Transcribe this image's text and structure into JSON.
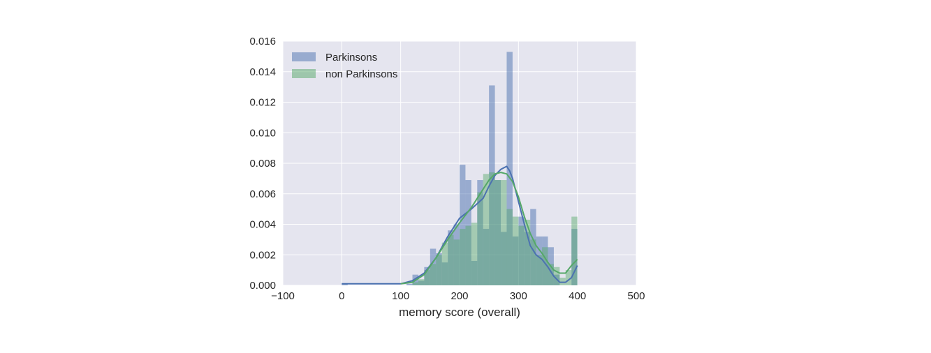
{
  "chart_data": {
    "type": "histogram",
    "title": "",
    "xlabel": "memory score (overall)",
    "ylabel": "",
    "xlim": [
      -100,
      500
    ],
    "ylim": [
      0,
      0.016
    ],
    "xticks": [
      "−100",
      "0",
      "100",
      "200",
      "300",
      "400",
      "500"
    ],
    "yticks": [
      "0.000",
      "0.002",
      "0.004",
      "0.006",
      "0.008",
      "0.010",
      "0.012",
      "0.014",
      "0.016"
    ],
    "grid": true,
    "legend_position": "top-left",
    "colors": {
      "Parkinsons": "#4c72b0",
      "non Parkinsons": "#55a868",
      "background": "#e5e5ef"
    },
    "series": [
      {
        "name": "Parkinsons",
        "kind": "histogram",
        "bin_left": [
          0,
          10,
          20,
          30,
          40,
          50,
          60,
          70,
          80,
          90,
          100,
          110,
          120,
          130,
          140,
          150,
          160,
          170,
          180,
          190,
          200,
          210,
          220,
          230,
          240,
          250,
          260,
          270,
          280,
          290,
          300,
          310,
          320,
          330,
          340,
          350,
          360,
          370,
          380,
          390
        ],
        "bin_width": 10,
        "values": [
          0.0001,
          0,
          0,
          0,
          0,
          0,
          0,
          0,
          0,
          0,
          0,
          0.0001,
          0.0007,
          0.0003,
          0.0012,
          0.0024,
          0.0021,
          0.0015,
          0.0036,
          0.004,
          0.0079,
          0.0069,
          0.0016,
          0.0069,
          0.0037,
          0.0131,
          0.0069,
          0.0035,
          0.0153,
          0.0032,
          0.0045,
          0.0035,
          0.005,
          0.0032,
          0.0032,
          0.0025,
          0.0007,
          0,
          0,
          0.0037
        ],
        "kde": {
          "x": [
            0,
            50,
            100,
            120,
            140,
            160,
            180,
            200,
            220,
            240,
            250,
            260,
            270,
            280,
            285,
            290,
            300,
            310,
            320,
            330,
            340,
            350,
            360,
            370,
            380,
            390,
            400
          ],
          "y": [
            0.0001,
            0.0001,
            0.0001,
            0.0003,
            0.0008,
            0.0018,
            0.0032,
            0.0044,
            0.005,
            0.0057,
            0.0065,
            0.0072,
            0.0076,
            0.0078,
            0.0075,
            0.007,
            0.0055,
            0.004,
            0.0026,
            0.002,
            0.0017,
            0.0012,
            0.0006,
            0.0002,
            0.0002,
            0.0005,
            0.0013
          ]
        }
      },
      {
        "name": "non Parkinsons",
        "kind": "histogram",
        "bin_left": [
          120,
          130,
          140,
          150,
          160,
          170,
          180,
          190,
          200,
          210,
          220,
          230,
          240,
          250,
          260,
          270,
          280,
          290,
          300,
          310,
          320,
          330,
          340,
          350,
          360,
          370,
          380,
          390
        ],
        "bin_width": 10,
        "values": [
          0.0002,
          0.0004,
          0.001,
          0.0014,
          0.002,
          0.0028,
          0.0033,
          0.003,
          0.0037,
          0.0039,
          0.0041,
          0.0061,
          0.0073,
          0.0074,
          0.0069,
          0.0069,
          0.005,
          0.0045,
          0.0039,
          0.0043,
          0.003,
          0.002,
          0.0025,
          0.0014,
          0.0012,
          0.0005,
          0.001,
          0.0045
        ],
        "kde": {
          "x": [
            100,
            120,
            140,
            160,
            180,
            200,
            220,
            240,
            250,
            260,
            270,
            280,
            290,
            300,
            310,
            320,
            330,
            340,
            350,
            360,
            370,
            380,
            390,
            400
          ],
          "y": [
            0.0001,
            0.0002,
            0.0007,
            0.0018,
            0.003,
            0.0041,
            0.0051,
            0.0063,
            0.0069,
            0.0073,
            0.0074,
            0.0073,
            0.0068,
            0.0058,
            0.0045,
            0.0034,
            0.0026,
            0.0021,
            0.0015,
            0.001,
            0.0008,
            0.0008,
            0.0013,
            0.0017
          ]
        }
      }
    ]
  }
}
